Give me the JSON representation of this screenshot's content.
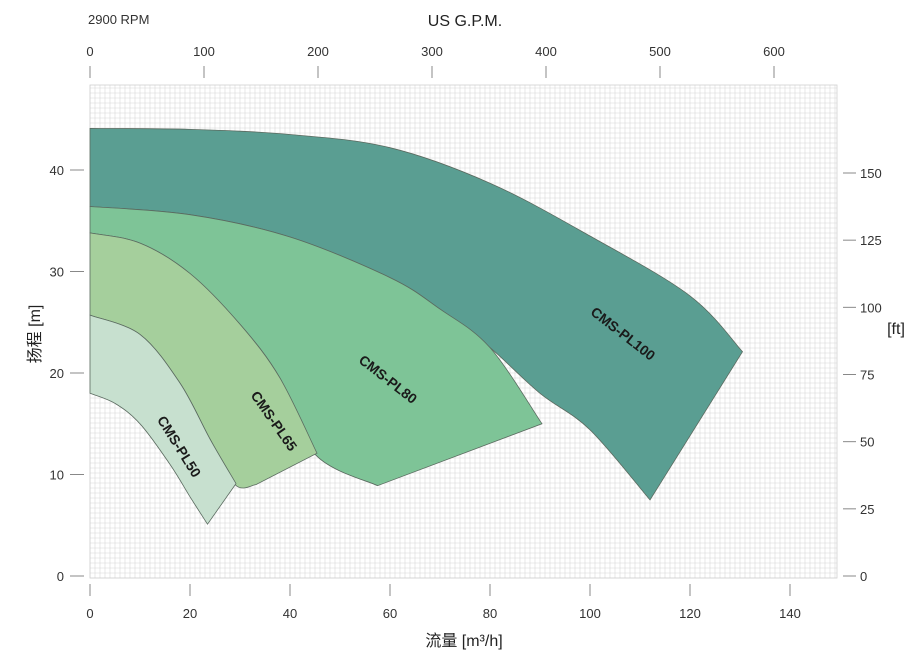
{
  "chart_data": {
    "type": "area",
    "rpm_label": "2900 RPM",
    "top_axis_title": "US G.P.M.",
    "xlabel": "流量 [m³/h]",
    "ylabel": "扬程 [m]",
    "right_axis_title": "[ft]",
    "xlim": [
      0,
      150
    ],
    "ylim": [
      0,
      48
    ],
    "grid": true,
    "x_ticks": [
      0,
      20,
      40,
      60,
      80,
      100,
      120,
      140
    ],
    "y_ticks": [
      0,
      10,
      20,
      30,
      40
    ],
    "top_ticks": [
      0,
      100,
      200,
      300,
      400,
      500,
      600
    ],
    "right_ticks": [
      0,
      25,
      50,
      75,
      100,
      125,
      150
    ],
    "top_tick_labels": [
      "0",
      "100",
      "200",
      "300",
      "400",
      "500",
      "600"
    ],
    "x_tick_labels": [
      "0",
      "20",
      "40",
      "60",
      "80",
      "100",
      "120",
      "140"
    ],
    "y_tick_labels": [
      "0",
      "10",
      "20",
      "30",
      "40"
    ],
    "right_tick_labels": [
      "0",
      "25",
      "50",
      "75",
      "100",
      "125",
      "150"
    ],
    "series": [
      {
        "name": "CMS-PL100",
        "color": "#5a9e92",
        "upper": [
          [
            0,
            44.1
          ],
          [
            20,
            44.0
          ],
          [
            40,
            43.5
          ],
          [
            60,
            42.2
          ],
          [
            80,
            38.7
          ],
          [
            100,
            33.5
          ],
          [
            120,
            27.6
          ],
          [
            130.5,
            22.1
          ]
        ],
        "lower": [
          [
            0,
            36.4
          ],
          [
            20,
            35.6
          ],
          [
            40,
            33.4
          ],
          [
            60,
            29.4
          ],
          [
            70,
            26.3
          ],
          [
            80,
            22.5
          ],
          [
            90,
            18.0
          ],
          [
            100,
            14.4
          ],
          [
            112,
            7.5
          ]
        ],
        "label_at": [
          106,
          23.5
        ],
        "label_rotation": 38
      },
      {
        "name": "CMS-PL80",
        "color": "#7ec497",
        "upper": [
          [
            0,
            36.4
          ],
          [
            20,
            35.6
          ],
          [
            40,
            33.4
          ],
          [
            60,
            29.4
          ],
          [
            70,
            26.3
          ],
          [
            80,
            22.5
          ],
          [
            90.4,
            15.0
          ]
        ],
        "lower": [
          [
            0,
            33.8
          ],
          [
            10,
            32.8
          ],
          [
            20,
            29.8
          ],
          [
            30,
            24.8
          ],
          [
            38,
            19.5
          ],
          [
            45,
            12.0
          ],
          [
            57.5,
            8.9
          ]
        ],
        "label_at": [
          59,
          19.0
        ],
        "label_rotation": 38
      },
      {
        "name": "CMS-PL65",
        "color": "#a5cf9c",
        "upper": [
          [
            0,
            33.8
          ],
          [
            10,
            32.8
          ],
          [
            20,
            29.8
          ],
          [
            30,
            24.8
          ],
          [
            38,
            19.5
          ],
          [
            45.4,
            12.1
          ]
        ],
        "lower": [
          [
            0,
            25.7
          ],
          [
            10,
            23.8
          ],
          [
            18,
            19.0
          ],
          [
            24,
            13.5
          ],
          [
            29,
            9.0
          ],
          [
            33.2,
            9.0
          ]
        ],
        "label_at": [
          36,
          15.0
        ],
        "label_rotation": 55
      },
      {
        "name": "CMS-PL50",
        "color": "#c7e0cf",
        "upper": [
          [
            0,
            25.7
          ],
          [
            10,
            23.8
          ],
          [
            18,
            19.0
          ],
          [
            24,
            13.5
          ],
          [
            29.2,
            9.1
          ]
        ],
        "lower": [
          [
            0,
            18.0
          ],
          [
            5,
            17.0
          ],
          [
            10,
            15.0
          ],
          [
            16,
            11.0
          ],
          [
            20,
            7.8
          ],
          [
            23.5,
            5.1
          ]
        ],
        "label_at": [
          17,
          12.5
        ],
        "label_rotation": 58
      }
    ]
  }
}
